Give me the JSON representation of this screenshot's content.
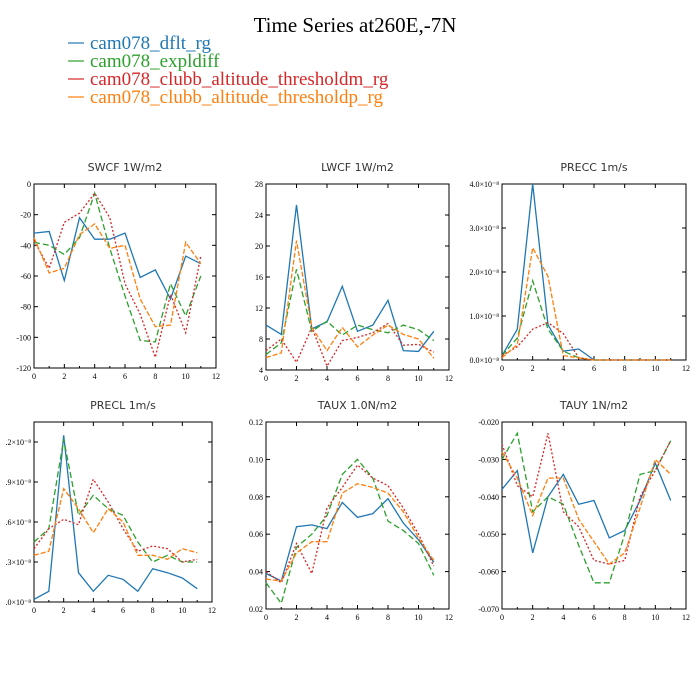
{
  "figure": {
    "title": "Time Series at260E,-7N",
    "legend": [
      {
        "name": "cam078_dflt_rg",
        "color": "#1f77b4"
      },
      {
        "name": "cam078_expldiff",
        "color": "#2ca02c"
      },
      {
        "name": "cam078_clubb_altitude_thresholdm_rg",
        "color": "#d62728"
      },
      {
        "name": "cam078_clubb_altitude_thresholdp_rg",
        "color": "#ff7f0e"
      }
    ]
  },
  "chart_data": [
    {
      "type": "line",
      "title": "SWCF   1W/m2",
      "x": [
        0,
        1,
        2,
        3,
        4,
        5,
        6,
        7,
        8,
        9,
        10,
        11
      ],
      "xlim": [
        0,
        12
      ],
      "xticks": [
        0,
        2,
        4,
        6,
        8,
        10,
        12
      ],
      "xtick_labels": [
        "0",
        "2",
        "4",
        "6",
        "8",
        "10",
        "12"
      ],
      "ylim": [
        -120,
        0
      ],
      "yticks": [
        -120,
        -100,
        -80,
        -60,
        -40,
        -20,
        0
      ],
      "ytick_labels": [
        "-120",
        "-100",
        "-80",
        "-60",
        "-40",
        "-20",
        "0"
      ],
      "series": [
        {
          "name": "cam078_dflt_rg",
          "values": [
            -32,
            -31,
            -63,
            -22,
            -36,
            -36,
            -32,
            -61,
            -56,
            -75,
            -47,
            -52
          ]
        },
        {
          "name": "cam078_expldiff",
          "values": [
            -38,
            -40,
            -46,
            -35,
            -6,
            -42,
            -73,
            -102,
            -103,
            -65,
            -86,
            -60
          ]
        },
        {
          "name": "cam078_clubb_altitude_thresholdm_rg",
          "values": [
            -37,
            -55,
            -25,
            -19,
            -6,
            -22,
            -65,
            -85,
            -113,
            -72,
            -97,
            -47
          ]
        },
        {
          "name": "cam078_clubb_altitude_thresholdp_rg",
          "values": [
            -35,
            -58,
            -55,
            -33,
            -26,
            -42,
            -40,
            -75,
            -93,
            -92,
            -38,
            -52
          ]
        }
      ]
    },
    {
      "type": "line",
      "title": "LWCF   1W/m2",
      "x": [
        0,
        1,
        2,
        3,
        4,
        5,
        6,
        7,
        8,
        9,
        10,
        11
      ],
      "xlim": [
        0,
        12
      ],
      "xticks": [
        0,
        2,
        4,
        6,
        8,
        10,
        12
      ],
      "xtick_labels": [
        "0",
        "2",
        "4",
        "6",
        "8",
        "10",
        "12"
      ],
      "ylim": [
        4,
        28
      ],
      "yticks": [
        4,
        8,
        12,
        16,
        20,
        24,
        28
      ],
      "ytick_labels": [
        "4",
        "8",
        "12",
        "16",
        "20",
        "24",
        "28"
      ],
      "series": [
        {
          "name": "cam078_dflt_rg",
          "values": [
            9.8,
            8.6,
            25.3,
            9.3,
            10.2,
            14.8,
            9.0,
            9.8,
            13.0,
            6.5,
            6.4,
            9.0
          ]
        },
        {
          "name": "cam078_expldiff",
          "values": [
            6.0,
            7.5,
            17.0,
            9.0,
            10.3,
            8.5,
            9.8,
            9.2,
            8.8,
            9.8,
            9.2,
            7.8
          ]
        },
        {
          "name": "cam078_clubb_altitude_thresholdm_rg",
          "values": [
            6.5,
            8.0,
            5.0,
            9.5,
            4.5,
            7.8,
            8.2,
            8.8,
            10.0,
            7.2,
            7.3,
            6.3
          ]
        },
        {
          "name": "cam078_clubb_altitude_thresholdp_rg",
          "values": [
            5.6,
            6.2,
            20.7,
            9.5,
            6.5,
            9.5,
            7.0,
            8.5,
            9.8,
            8.6,
            8.0,
            5.5
          ]
        }
      ]
    },
    {
      "type": "line",
      "title": "PRECC   1m/s",
      "x": [
        0,
        1,
        2,
        3,
        4,
        5,
        6,
        7,
        8,
        9,
        10,
        11
      ],
      "xlim": [
        0,
        12
      ],
      "xticks": [
        0,
        2,
        4,
        6,
        8,
        10,
        12
      ],
      "xtick_labels": [
        "0",
        "2",
        "4",
        "6",
        "8",
        "10",
        "12"
      ],
      "ylim": [
        0,
        4.0
      ],
      "yticks": [
        0,
        1,
        2,
        3,
        4
      ],
      "ytick_labels": [
        "0.0×10⁻⁸",
        "1.0×10⁻⁸",
        "2.0×10⁻⁸",
        "3.0×10⁻⁸",
        "4.0×10⁻⁸"
      ],
      "y_unit": "×10⁻⁸",
      "series": [
        {
          "name": "cam078_dflt_rg",
          "values": [
            0.1,
            0.7,
            4.0,
            0.8,
            0.2,
            0.25,
            0.0,
            0,
            0,
            0,
            0,
            0
          ]
        },
        {
          "name": "cam078_expldiff",
          "values": [
            0.1,
            0.5,
            1.8,
            0.7,
            0.2,
            0.05,
            0.0,
            0,
            0,
            0,
            0,
            0
          ]
        },
        {
          "name": "cam078_clubb_altitude_thresholdm_rg",
          "values": [
            0.1,
            0.3,
            0.7,
            0.85,
            0.6,
            0.05,
            0.0,
            0,
            0,
            0,
            0,
            0
          ]
        },
        {
          "name": "cam078_clubb_altitude_thresholdp_rg",
          "values": [
            0.05,
            0.35,
            2.55,
            1.9,
            0.1,
            0.05,
            0.0,
            0,
            0,
            0,
            0,
            0
          ]
        }
      ]
    },
    {
      "type": "line",
      "title": "PRECL   1m/s",
      "x": [
        0,
        1,
        2,
        3,
        4,
        5,
        6,
        7,
        8,
        9,
        10,
        11
      ],
      "xlim": [
        0,
        12
      ],
      "xticks": [
        0,
        2,
        4,
        6,
        8,
        10,
        12
      ],
      "xtick_labels": [
        "0",
        "2",
        "4",
        "6",
        "8",
        "10",
        "12"
      ],
      "ylim": [
        0.0,
        1.35
      ],
      "yticks": [
        0.0,
        0.3,
        0.6,
        0.9,
        1.2
      ],
      "ytick_labels": [
        ".0×10⁻⁸",
        ".3×10⁻⁸",
        ".6×10⁻⁸",
        ".9×10⁻⁸",
        ".2×10⁻⁸"
      ],
      "y_unit": "×10⁻⁸",
      "series": [
        {
          "name": "cam078_dflt_rg",
          "values": [
            0.02,
            0.08,
            1.25,
            0.22,
            0.08,
            0.2,
            0.17,
            0.08,
            0.25,
            0.22,
            0.18,
            0.1
          ]
        },
        {
          "name": "cam078_expldiff",
          "values": [
            0.45,
            0.55,
            1.22,
            0.65,
            0.8,
            0.7,
            0.65,
            0.45,
            0.3,
            0.35,
            0.3,
            0.3
          ]
        },
        {
          "name": "cam078_clubb_altitude_thresholdm_rg",
          "values": [
            0.4,
            0.55,
            0.62,
            0.58,
            0.92,
            0.75,
            0.55,
            0.38,
            0.42,
            0.4,
            0.3,
            0.32
          ]
        },
        {
          "name": "cam078_clubb_altitude_thresholdp_rg",
          "values": [
            0.35,
            0.38,
            0.85,
            0.7,
            0.52,
            0.7,
            0.6,
            0.35,
            0.35,
            0.32,
            0.4,
            0.37
          ]
        }
      ]
    },
    {
      "type": "line",
      "title": "TAUX   1.0N/m2",
      "x": [
        0,
        1,
        2,
        3,
        4,
        5,
        6,
        7,
        8,
        9,
        10,
        11
      ],
      "xlim": [
        0,
        12
      ],
      "xticks": [
        0,
        2,
        4,
        6,
        8,
        10,
        12
      ],
      "xtick_labels": [
        "0",
        "2",
        "4",
        "6",
        "8",
        "10",
        "12"
      ],
      "ylim": [
        0.02,
        0.12
      ],
      "yticks": [
        0.02,
        0.04,
        0.06,
        0.08,
        0.1,
        0.12
      ],
      "ytick_labels": [
        "0.02",
        "0.04",
        "0.06",
        "0.08",
        "0.10",
        "0.12"
      ],
      "series": [
        {
          "name": "cam078_dflt_rg",
          "values": [
            0.039,
            0.035,
            0.064,
            0.065,
            0.063,
            0.077,
            0.069,
            0.071,
            0.079,
            0.066,
            0.057,
            0.045
          ]
        },
        {
          "name": "cam078_expldiff",
          "values": [
            0.034,
            0.023,
            0.053,
            0.06,
            0.07,
            0.092,
            0.1,
            0.09,
            0.067,
            0.062,
            0.055,
            0.038
          ]
        },
        {
          "name": "cam078_clubb_altitude_thresholdm_rg",
          "values": [
            0.04,
            0.034,
            0.055,
            0.039,
            0.074,
            0.085,
            0.097,
            0.09,
            0.086,
            0.074,
            0.06,
            0.043
          ]
        },
        {
          "name": "cam078_clubb_altitude_thresholdp_rg",
          "values": [
            0.036,
            0.035,
            0.05,
            0.056,
            0.056,
            0.082,
            0.087,
            0.085,
            0.082,
            0.072,
            0.058,
            0.046
          ]
        }
      ]
    },
    {
      "type": "line",
      "title": "TAUY   1N/m2",
      "x": [
        0,
        1,
        2,
        3,
        4,
        5,
        6,
        7,
        8,
        9,
        10,
        11
      ],
      "xlim": [
        0,
        12
      ],
      "xticks": [
        0,
        2,
        4,
        6,
        8,
        10,
        12
      ],
      "xtick_labels": [
        "0",
        "2",
        "4",
        "6",
        "8",
        "10",
        "12"
      ],
      "ylim": [
        -0.07,
        -0.02
      ],
      "yticks": [
        -0.07,
        -0.06,
        -0.05,
        -0.04,
        -0.03,
        -0.02
      ],
      "ytick_labels": [
        "-0.070",
        "-0.060",
        "-0.050",
        "-0.040",
        "-0.030",
        "-0.020"
      ],
      "series": [
        {
          "name": "cam078_dflt_rg",
          "values": [
            -0.038,
            -0.033,
            -0.055,
            -0.04,
            -0.034,
            -0.042,
            -0.041,
            -0.051,
            -0.049,
            -0.041,
            -0.031,
            -0.041
          ]
        },
        {
          "name": "cam078_expldiff",
          "values": [
            -0.03,
            -0.023,
            -0.044,
            -0.04,
            -0.042,
            -0.053,
            -0.063,
            -0.063,
            -0.05,
            -0.034,
            -0.033,
            -0.025
          ]
        },
        {
          "name": "cam078_clubb_altitude_thresholdm_rg",
          "values": [
            -0.026,
            -0.037,
            -0.04,
            -0.023,
            -0.044,
            -0.048,
            -0.057,
            -0.058,
            -0.057,
            -0.04,
            -0.033,
            -0.025
          ]
        },
        {
          "name": "cam078_clubb_altitude_thresholdp_rg",
          "values": [
            -0.028,
            -0.035,
            -0.045,
            -0.035,
            -0.035,
            -0.046,
            -0.052,
            -0.058,
            -0.055,
            -0.043,
            -0.03,
            -0.034
          ]
        }
      ]
    }
  ]
}
